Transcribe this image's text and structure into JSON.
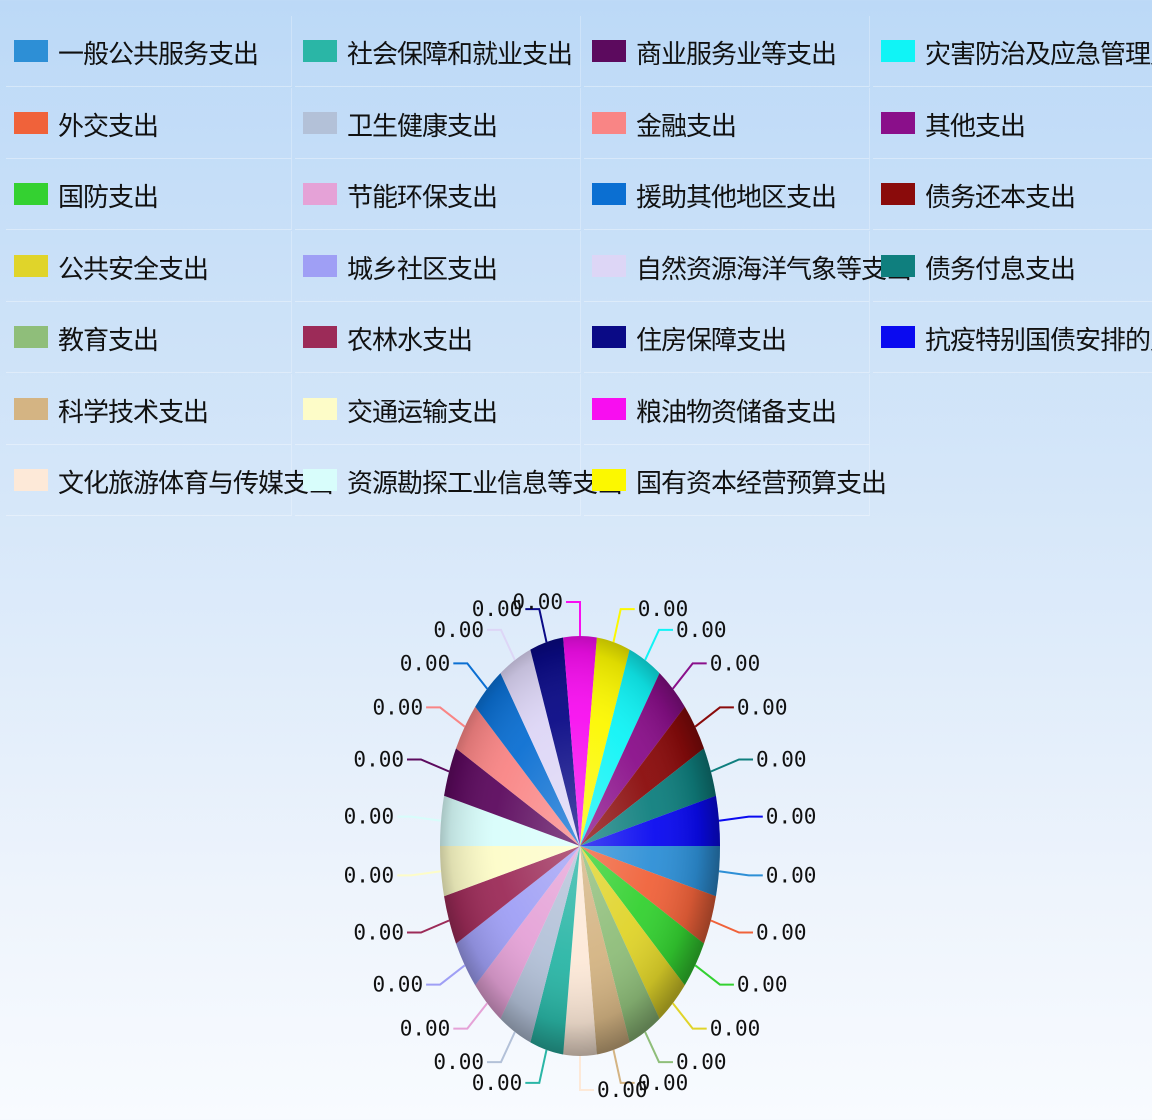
{
  "colors": {
    "background_top": "#bcd9f7",
    "background_bottom": "#f8fbff"
  },
  "chart_data": {
    "type": "pie",
    "title": "",
    "value_label_format": "0.00",
    "legend_position": "top",
    "slices": [
      {
        "name": "一般公共服务支出",
        "value": 0.0,
        "label": "0.00",
        "color": "#2d8fd6"
      },
      {
        "name": "外交支出",
        "value": 0.0,
        "label": "0.00",
        "color": "#f0623a"
      },
      {
        "name": "国防支出",
        "value": 0.0,
        "label": "0.00",
        "color": "#34d131"
      },
      {
        "name": "公共安全支出",
        "value": 0.0,
        "label": "0.00",
        "color": "#e0d42a"
      },
      {
        "name": "教育支出",
        "value": 0.0,
        "label": "0.00",
        "color": "#8fbe7a"
      },
      {
        "name": "科学技术支出",
        "value": 0.0,
        "label": "0.00",
        "color": "#d4b483"
      },
      {
        "name": "文化旅游体育与传媒支出",
        "value": 0.0,
        "label": "0.00",
        "color": "#fde9d8"
      },
      {
        "name": "社会保障和就业支出",
        "value": 0.0,
        "label": "0.00",
        "color": "#2ab6a6"
      },
      {
        "name": "卫生健康支出",
        "value": 0.0,
        "label": "0.00",
        "color": "#b3c1d8"
      },
      {
        "name": "节能环保支出",
        "value": 0.0,
        "label": "0.00",
        "color": "#e5a2d7"
      },
      {
        "name": "城乡社区支出",
        "value": 0.0,
        "label": "0.00",
        "color": "#9f9ff5"
      },
      {
        "name": "农林水支出",
        "value": 0.0,
        "label": "0.00",
        "color": "#9c2b58"
      },
      {
        "name": "交通运输支出",
        "value": 0.0,
        "label": "0.00",
        "color": "#fdfcc8"
      },
      {
        "name": "资源勘探工业信息等支出",
        "value": 0.0,
        "label": "0.00",
        "color": "#d8fdfb"
      },
      {
        "name": "商业服务业等支出",
        "value": 0.0,
        "label": "0.00",
        "color": "#5c0a5e"
      },
      {
        "name": "金融支出",
        "value": 0.0,
        "label": "0.00",
        "color": "#f98585"
      },
      {
        "name": "援助其他地区支出",
        "value": 0.0,
        "label": "0.00",
        "color": "#0b6fd2"
      },
      {
        "name": "自然资源海洋气象等支出",
        "value": 0.0,
        "label": "0.00",
        "color": "#ddd6f6"
      },
      {
        "name": "住房保障支出",
        "value": 0.0,
        "label": "0.00",
        "color": "#0a0a86"
      },
      {
        "name": "粮油物资储备支出",
        "value": 0.0,
        "label": "0.00",
        "color": "#f80ef0"
      },
      {
        "name": "国有资本经营预算支出",
        "value": 0.0,
        "label": "0.00",
        "color": "#fcf800"
      },
      {
        "name": "灾害防治及应急管理支出",
        "value": 0.0,
        "label": "0.00",
        "color": "#10f4f6"
      },
      {
        "name": "其他支出",
        "value": 0.0,
        "label": "0.00",
        "color": "#8a0f8a"
      },
      {
        "name": "债务还本支出",
        "value": 0.0,
        "label": "0.00",
        "color": "#8a0b0b"
      },
      {
        "name": "债务付息支出",
        "value": 0.0,
        "label": "0.00",
        "color": "#0f7f7e"
      },
      {
        "name": "抗疫特别国债安排的支出",
        "value": 0.0,
        "label": "0.00",
        "color": "#0a0af0"
      }
    ]
  }
}
